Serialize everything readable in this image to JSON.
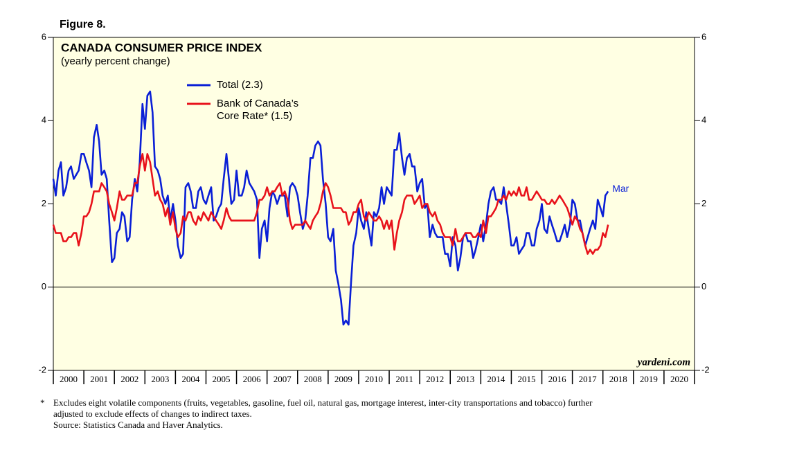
{
  "chart_data": {
    "type": "line",
    "figure_label": "Figure 8.",
    "title": "CANADA CONSUMER PRICE INDEX",
    "subtitle": "(yearly percent change)",
    "annotation": "Mar",
    "watermark": "yardeni.com",
    "footnote_marker": "*",
    "footnote": [
      "Excludes eight volatile components (fruits, vegetables, gasoline, fuel oil, natural gas, mortgage interest, inter-city transportations and tobacco) further",
      "adjusted to exclude effects of changes to indirect taxes."
    ],
    "source": "Source: Statistics Canada and Haver Analytics.",
    "xlim": [
      2000,
      2021
    ],
    "xticks": [
      {
        "value": 2000.5,
        "label": "2000"
      },
      {
        "value": 2001.5,
        "label": "2001"
      },
      {
        "value": 2002.5,
        "label": "2002"
      },
      {
        "value": 2003.5,
        "label": "2003"
      },
      {
        "value": 2004.5,
        "label": "2004"
      },
      {
        "value": 2005.5,
        "label": "2005"
      },
      {
        "value": 2006.5,
        "label": "2006"
      },
      {
        "value": 2007.5,
        "label": "2007"
      },
      {
        "value": 2008.5,
        "label": "2008"
      },
      {
        "value": 2009.5,
        "label": "2009"
      },
      {
        "value": 2010.5,
        "label": "2010"
      },
      {
        "value": 2011.5,
        "label": "2011"
      },
      {
        "value": 2012.5,
        "label": "2012"
      },
      {
        "value": 2013.5,
        "label": "2013"
      },
      {
        "value": 2014.5,
        "label": "2014"
      },
      {
        "value": 2015.5,
        "label": "2015"
      },
      {
        "value": 2016.5,
        "label": "2016"
      },
      {
        "value": 2017.5,
        "label": "2017"
      },
      {
        "value": 2018.5,
        "label": "2018"
      },
      {
        "value": 2019.5,
        "label": "2019"
      },
      {
        "value": 2020.5,
        "label": "2020"
      }
    ],
    "ylim": [
      -2,
      6
    ],
    "yticks": [
      -2,
      0,
      2,
      4,
      6
    ],
    "y2lim": [
      -2,
      6
    ],
    "y2ticks": [
      -2,
      0,
      2,
      4,
      6
    ],
    "grid": false,
    "x": [
      2000,
      2000.08,
      2000.17,
      2000.25,
      2000.33,
      2000.42,
      2000.5,
      2000.58,
      2000.67,
      2000.75,
      2000.83,
      2000.92,
      2001,
      2001.08,
      2001.17,
      2001.25,
      2001.33,
      2001.42,
      2001.5,
      2001.58,
      2001.67,
      2001.75,
      2001.83,
      2001.92,
      2002,
      2002.08,
      2002.17,
      2002.25,
      2002.33,
      2002.42,
      2002.5,
      2002.58,
      2002.67,
      2002.75,
      2002.83,
      2002.92,
      2003,
      2003.08,
      2003.17,
      2003.25,
      2003.33,
      2003.42,
      2003.5,
      2003.58,
      2003.67,
      2003.75,
      2003.83,
      2003.92,
      2004,
      2004.08,
      2004.17,
      2004.25,
      2004.33,
      2004.42,
      2004.5,
      2004.58,
      2004.67,
      2004.75,
      2004.83,
      2004.92,
      2005,
      2005.08,
      2005.17,
      2005.25,
      2005.33,
      2005.42,
      2005.5,
      2005.58,
      2005.67,
      2005.75,
      2005.83,
      2005.92,
      2006,
      2006.08,
      2006.17,
      2006.25,
      2006.33,
      2006.42,
      2006.5,
      2006.58,
      2006.67,
      2006.75,
      2006.83,
      2006.92,
      2007,
      2007.08,
      2007.17,
      2007.25,
      2007.33,
      2007.42,
      2007.5,
      2007.58,
      2007.67,
      2007.75,
      2007.83,
      2007.92,
      2008,
      2008.08,
      2008.17,
      2008.25,
      2008.33,
      2008.42,
      2008.5,
      2008.58,
      2008.67,
      2008.75,
      2008.83,
      2008.92,
      2009,
      2009.08,
      2009.17,
      2009.25,
      2009.33,
      2009.42,
      2009.5,
      2009.58,
      2009.67,
      2009.75,
      2009.83,
      2009.92,
      2010,
      2010.08,
      2010.17,
      2010.25,
      2010.33,
      2010.42,
      2010.5,
      2010.58,
      2010.67,
      2010.75,
      2010.83,
      2010.92,
      2011,
      2011.08,
      2011.17,
      2011.25,
      2011.33,
      2011.42,
      2011.5,
      2011.58,
      2011.67,
      2011.75,
      2011.83,
      2011.92,
      2012,
      2012.08,
      2012.17,
      2012.25,
      2012.33,
      2012.42,
      2012.5,
      2012.58,
      2012.67,
      2012.75,
      2012.83,
      2012.92,
      2013,
      2013.08,
      2013.17,
      2013.25,
      2013.33,
      2013.42,
      2013.5,
      2013.58,
      2013.67,
      2013.75,
      2013.83,
      2013.92,
      2014,
      2014.08,
      2014.17,
      2014.25,
      2014.33,
      2014.42,
      2014.5,
      2014.58,
      2014.67,
      2014.75,
      2014.83,
      2014.92,
      2015,
      2015.08,
      2015.17,
      2015.25,
      2015.33,
      2015.42,
      2015.5,
      2015.58,
      2015.67,
      2015.75,
      2015.83,
      2015.92,
      2016,
      2016.08,
      2016.17,
      2016.25,
      2016.33,
      2016.42,
      2016.5,
      2016.58,
      2016.67,
      2016.75,
      2016.83,
      2016.92,
      2017,
      2017.08,
      2017.17,
      2017.25,
      2017.33,
      2017.42,
      2017.5,
      2017.58,
      2017.67,
      2017.75,
      2017.83,
      2017.92,
      2018,
      2018.08,
      2018.17
    ],
    "series": [
      {
        "name": "Total (2.3)",
        "color": "#0a1fd6",
        "values": [
          2.6,
          2.2,
          2.8,
          3.0,
          2.2,
          2.4,
          2.8,
          2.9,
          2.6,
          2.7,
          2.8,
          3.2,
          3.2,
          3.0,
          2.8,
          2.4,
          3.6,
          3.9,
          3.5,
          2.7,
          2.8,
          2.6,
          1.6,
          0.6,
          0.7,
          1.3,
          1.4,
          1.8,
          1.7,
          1.1,
          1.2,
          2.1,
          2.6,
          2.3,
          3.0,
          4.4,
          3.8,
          4.6,
          4.7,
          4.2,
          2.9,
          2.8,
          2.6,
          2.2,
          2.0,
          2.2,
          1.6,
          2.0,
          1.6,
          1.0,
          0.7,
          0.8,
          2.4,
          2.5,
          2.3,
          1.9,
          1.9,
          2.3,
          2.4,
          2.1,
          2.0,
          2.2,
          2.4,
          1.6,
          1.7,
          1.9,
          2.0,
          2.6,
          3.2,
          2.6,
          2.0,
          2.1,
          2.8,
          2.2,
          2.2,
          2.4,
          2.8,
          2.5,
          2.4,
          2.3,
          2.1,
          0.7,
          1.4,
          1.6,
          1.1,
          1.9,
          2.3,
          2.2,
          2.0,
          2.2,
          2.2,
          2.2,
          1.7,
          2.4,
          2.5,
          2.4,
          2.2,
          1.8,
          1.4,
          1.6,
          2.2,
          3.1,
          3.1,
          3.4,
          3.5,
          3.4,
          2.6,
          2.0,
          1.2,
          1.1,
          1.4,
          0.4,
          0.1,
          -0.3,
          -0.9,
          -0.8,
          -0.9,
          0.1,
          1.0,
          1.3,
          1.9,
          1.6,
          1.4,
          1.8,
          1.4,
          1.0,
          1.8,
          1.7,
          1.9,
          2.4,
          2.0,
          2.4,
          2.3,
          2.2,
          3.3,
          3.3,
          3.7,
          3.1,
          2.7,
          3.1,
          3.2,
          2.9,
          2.9,
          2.3,
          2.5,
          2.6,
          1.9,
          2.0,
          1.2,
          1.5,
          1.3,
          1.2,
          1.2,
          1.2,
          0.8,
          0.8,
          0.5,
          1.2,
          1.0,
          0.4,
          0.7,
          1.2,
          1.3,
          1.1,
          1.1,
          0.7,
          0.9,
          1.2,
          1.5,
          1.1,
          1.5,
          2.0,
          2.3,
          2.4,
          2.1,
          2.1,
          2.0,
          2.4,
          2.0,
          1.5,
          1.0,
          1.0,
          1.2,
          0.8,
          0.9,
          1.0,
          1.3,
          1.3,
          1.0,
          1.0,
          1.4,
          1.6,
          2.0,
          1.4,
          1.3,
          1.7,
          1.5,
          1.3,
          1.1,
          1.1,
          1.3,
          1.5,
          1.2,
          1.5,
          2.1,
          2.0,
          1.6,
          1.6,
          1.3,
          1.0,
          1.2,
          1.4,
          1.6,
          1.4,
          2.1,
          1.9,
          1.7,
          2.2,
          2.3
        ]
      },
      {
        "name": "Bank of Canada’s\nCore Rate* (1.5)",
        "color": "#e8121b",
        "values": [
          1.5,
          1.3,
          1.3,
          1.3,
          1.1,
          1.1,
          1.2,
          1.2,
          1.3,
          1.3,
          1.0,
          1.3,
          1.7,
          1.7,
          1.8,
          2.0,
          2.3,
          2.3,
          2.3,
          2.5,
          2.4,
          2.3,
          2.0,
          1.8,
          1.6,
          1.9,
          2.3,
          2.1,
          2.1,
          2.2,
          2.2,
          2.2,
          2.5,
          2.5,
          2.9,
          3.2,
          2.8,
          3.2,
          3.0,
          2.6,
          2.2,
          2.3,
          2.1,
          2.0,
          1.7,
          1.9,
          1.5,
          1.8,
          1.4,
          1.2,
          1.3,
          1.7,
          1.6,
          1.8,
          1.8,
          1.6,
          1.5,
          1.7,
          1.6,
          1.8,
          1.7,
          1.6,
          1.8,
          1.7,
          1.6,
          1.5,
          1.4,
          1.6,
          1.9,
          1.7,
          1.6,
          1.6,
          1.6,
          1.6,
          1.6,
          1.6,
          1.6,
          1.6,
          1.6,
          1.6,
          1.8,
          2.1,
          2.1,
          2.2,
          2.4,
          2.2,
          2.3,
          2.3,
          2.4,
          2.5,
          2.2,
          2.3,
          2.1,
          1.6,
          1.4,
          1.5,
          1.5,
          1.5,
          1.5,
          1.6,
          1.5,
          1.4,
          1.6,
          1.7,
          1.8,
          2.0,
          2.3,
          2.5,
          2.4,
          2.2,
          1.9,
          1.9,
          1.9,
          1.9,
          1.8,
          1.8,
          1.5,
          1.6,
          1.8,
          1.8,
          2.0,
          2.1,
          1.7,
          1.6,
          1.8,
          1.7,
          1.6,
          1.6,
          1.7,
          1.6,
          1.4,
          1.6,
          1.4,
          1.6,
          0.9,
          1.3,
          1.6,
          1.8,
          2.1,
          2.2,
          2.2,
          2.2,
          2.0,
          2.1,
          2.2,
          1.9,
          2.0,
          2.0,
          1.8,
          1.7,
          1.8,
          1.6,
          1.5,
          1.3,
          1.2,
          1.2,
          1.2,
          1.0,
          1.4,
          1.1,
          1.1,
          1.2,
          1.3,
          1.3,
          1.3,
          1.2,
          1.2,
          1.3,
          1.2,
          1.6,
          1.3,
          1.7,
          1.7,
          1.8,
          1.9,
          2.1,
          2.1,
          2.2,
          2.1,
          2.3,
          2.2,
          2.3,
          2.2,
          2.4,
          2.2,
          2.2,
          2.4,
          2.1,
          2.1,
          2.2,
          2.3,
          2.2,
          2.1,
          2.1,
          2.0,
          2.0,
          2.1,
          2.0,
          2.1,
          2.2,
          2.1,
          2.0,
          1.9,
          1.7,
          1.5,
          1.7,
          1.6,
          1.4,
          1.3,
          1.0,
          0.8,
          0.9,
          0.8,
          0.9,
          0.9,
          1.0,
          1.3,
          1.2,
          1.5
        ]
      }
    ]
  }
}
